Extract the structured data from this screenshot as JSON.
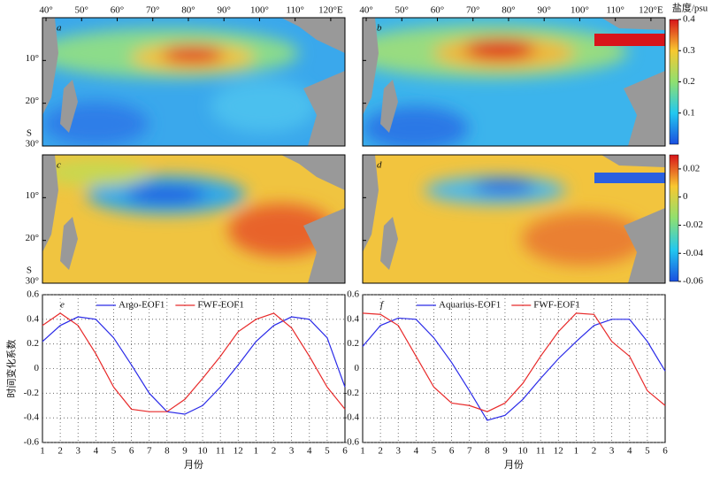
{
  "chart_data": [
    {
      "type": "map",
      "panel": "a",
      "xlim": [
        39,
        124
      ],
      "xticks": [
        {
          "value": 40,
          "label": "40°"
        },
        {
          "value": 50,
          "label": "50°"
        },
        {
          "value": 60,
          "label": "60°"
        },
        {
          "value": 70,
          "label": "70°"
        },
        {
          "value": 80,
          "label": "80°"
        },
        {
          "value": 90,
          "label": "90°"
        },
        {
          "value": 100,
          "label": "100°"
        },
        {
          "value": 110,
          "label": "110°"
        },
        {
          "value": 120,
          "label": "120°E"
        }
      ],
      "ylim": [
        0,
        30
      ],
      "yticks": [
        {
          "value": 10,
          "label": "10°"
        },
        {
          "value": 20,
          "label": "20°"
        },
        {
          "value": 30,
          "label": "30°"
        }
      ],
      "hemisphere": "S"
    },
    {
      "type": "map",
      "panel": "b",
      "xlim": [
        39,
        124
      ],
      "xticks": [
        {
          "value": 40,
          "label": "40°"
        },
        {
          "value": 50,
          "label": "50°"
        },
        {
          "value": 60,
          "label": "60°"
        },
        {
          "value": 70,
          "label": "70°"
        },
        {
          "value": 80,
          "label": "80°"
        },
        {
          "value": 90,
          "label": "90°"
        },
        {
          "value": 100,
          "label": "100°"
        },
        {
          "value": 110,
          "label": "110°"
        },
        {
          "value": 120,
          "label": "120°E"
        }
      ],
      "ylim": [
        0,
        30
      ],
      "yticks": [
        {
          "value": 10,
          "label": "10°"
        },
        {
          "value": 20,
          "label": "20°"
        },
        {
          "value": 30,
          "label": "30°"
        }
      ],
      "hemisphere": "S"
    },
    {
      "type": "map",
      "panel": "c",
      "xlim": [
        39,
        124
      ],
      "ylim": [
        0,
        30
      ],
      "yticks": [
        {
          "value": 10,
          "label": "10°"
        },
        {
          "value": 20,
          "label": "20°"
        },
        {
          "value": 30,
          "label": "30°"
        }
      ],
      "hemisphere": "S"
    },
    {
      "type": "map",
      "panel": "d",
      "xlim": [
        39,
        124
      ],
      "ylim": [
        0,
        30
      ],
      "yticks": [
        {
          "value": 10,
          "label": "10°"
        },
        {
          "value": 20,
          "label": "20°"
        },
        {
          "value": 30,
          "label": "30°"
        }
      ],
      "hemisphere": "S"
    },
    {
      "type": "colorbar",
      "title": "盐度/psu",
      "ylim": [
        0,
        0.4
      ],
      "yticks": [
        0.1,
        0.2,
        0.3,
        0.4
      ]
    },
    {
      "type": "colorbar",
      "ylim": [
        -0.06,
        0.03
      ],
      "yticks": [
        -0.06,
        -0.04,
        -0.02,
        0,
        0.02
      ]
    },
    {
      "type": "line",
      "panel": "e",
      "ylabel": "时间变化系数",
      "xlabel": "月份",
      "grid": true,
      "legend": "upper center",
      "categories": [
        "1",
        "2",
        "3",
        "4",
        "5",
        "6",
        "7",
        "8",
        "9",
        "10",
        "11",
        "12",
        "1",
        "2",
        "3",
        "4",
        "5",
        "6"
      ],
      "ylim": [
        -0.6,
        0.6
      ],
      "yticks": [
        -0.6,
        -0.4,
        -0.2,
        0,
        0.2,
        0.4,
        0.6
      ],
      "series": [
        {
          "name": "Argo-EOF1",
          "color": "#2a2ae8",
          "values": [
            0.22,
            0.35,
            0.42,
            0.4,
            0.25,
            0.03,
            -0.2,
            -0.35,
            -0.37,
            -0.3,
            -0.15,
            0.03,
            0.22,
            0.35,
            0.42,
            0.4,
            0.25,
            -0.15
          ]
        },
        {
          "name": "FWF-EOF1",
          "color": "#e82a2a",
          "values": [
            0.35,
            0.45,
            0.35,
            0.12,
            -0.15,
            -0.33,
            -0.35,
            -0.35,
            -0.25,
            -0.08,
            0.1,
            0.3,
            0.4,
            0.45,
            0.33,
            0.1,
            -0.15,
            -0.33
          ]
        }
      ]
    },
    {
      "type": "line",
      "panel": "f",
      "xlabel": "月份",
      "grid": true,
      "legend": "upper center",
      "categories": [
        "1",
        "2",
        "3",
        "4",
        "5",
        "6",
        "7",
        "8",
        "9",
        "10",
        "11",
        "12",
        "1",
        "2",
        "3",
        "4",
        "5",
        "6"
      ],
      "ylim": [
        -0.6,
        0.6
      ],
      "yticks": [
        -0.6,
        -0.4,
        -0.2,
        0,
        0.2,
        0.4,
        0.6
      ],
      "series": [
        {
          "name": "Aquarius-EOF1",
          "color": "#2a2ae8",
          "values": [
            0.18,
            0.35,
            0.41,
            0.4,
            0.25,
            0.05,
            -0.18,
            -0.42,
            -0.38,
            -0.25,
            -0.08,
            0.08,
            0.22,
            0.35,
            0.4,
            0.4,
            0.22,
            -0.02
          ]
        },
        {
          "name": "FWF-EOF1",
          "color": "#e82a2a",
          "values": [
            0.45,
            0.44,
            0.35,
            0.1,
            -0.15,
            -0.28,
            -0.3,
            -0.35,
            -0.28,
            -0.12,
            0.1,
            0.3,
            0.45,
            0.44,
            0.22,
            0.1,
            -0.18,
            -0.3
          ]
        }
      ]
    }
  ]
}
